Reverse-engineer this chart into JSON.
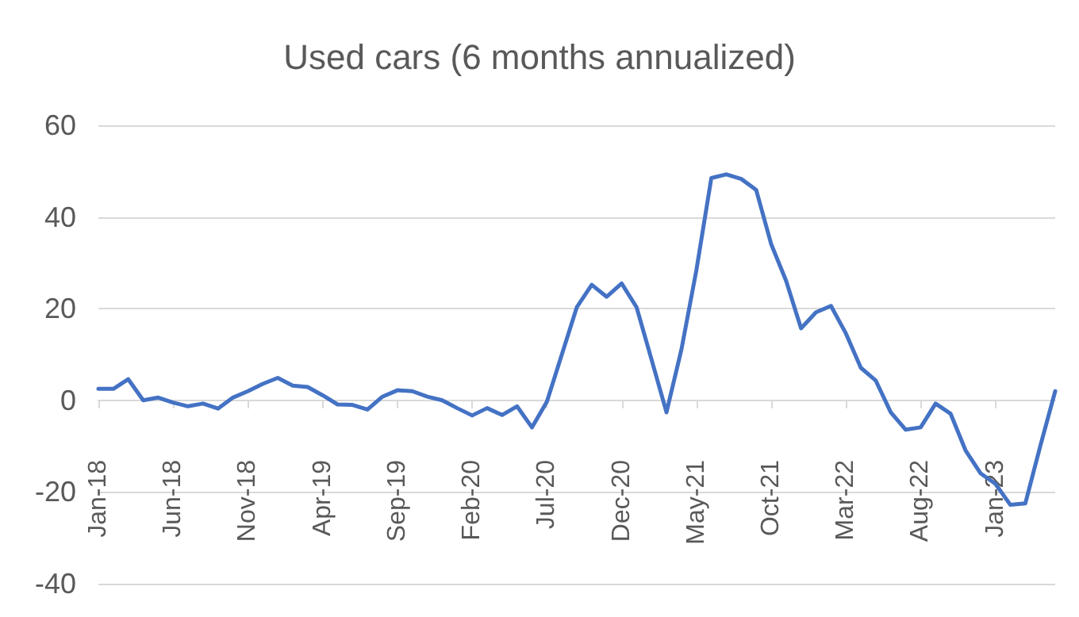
{
  "chart_data": {
    "type": "line",
    "title": "Used cars (6 months annualized)",
    "categories": [
      "Jan-18",
      null,
      null,
      null,
      null,
      "Jun-18",
      null,
      null,
      null,
      null,
      "Nov-18",
      null,
      null,
      null,
      null,
      "Apr-19",
      null,
      null,
      null,
      null,
      "Sep-19",
      null,
      null,
      null,
      null,
      "Feb-20",
      null,
      null,
      null,
      null,
      "Jul-20",
      null,
      null,
      null,
      null,
      "Dec-20",
      null,
      null,
      null,
      null,
      "May-21",
      null,
      null,
      null,
      null,
      "Oct-21",
      null,
      null,
      null,
      null,
      "Mar-22",
      null,
      null,
      null,
      null,
      "Aug-22",
      null,
      null,
      null,
      null,
      "Jan-23",
      null,
      null,
      null,
      null
    ],
    "series": [
      {
        "color": "#4472c4",
        "values": [
          2.5,
          2.5,
          4.6,
          0,
          0.6,
          -0.5,
          -1.3,
          -0.7,
          -1.8,
          0.6,
          2,
          3.6,
          4.9,
          3.2,
          2.9,
          1.1,
          -0.9,
          -1,
          -2,
          0.8,
          2.2,
          2,
          0.8,
          0,
          -1.7,
          -3.3,
          -1.7,
          -3.2,
          -1.3,
          -5.9,
          -0.3,
          10,
          20.3,
          25.2,
          22.6,
          25.5,
          20.3,
          8.9,
          -2.6,
          11.1,
          28.4,
          48.5,
          49.3,
          48.3,
          45.9,
          34.1,
          26.1,
          15.7,
          19.2,
          20.6,
          14.6,
          7.1,
          4.3,
          -2.6,
          -6.4,
          -5.9,
          -0.7,
          -2.9,
          -10.9,
          -15.9,
          -18.2,
          -22.8,
          -22.5,
          -10,
          2
        ]
      }
    ],
    "ylim": [
      -40,
      60
    ],
    "yticks": [
      -40,
      -20,
      0,
      20,
      40,
      60
    ],
    "grid": "y",
    "marker": "none",
    "line_style": "solid"
  }
}
